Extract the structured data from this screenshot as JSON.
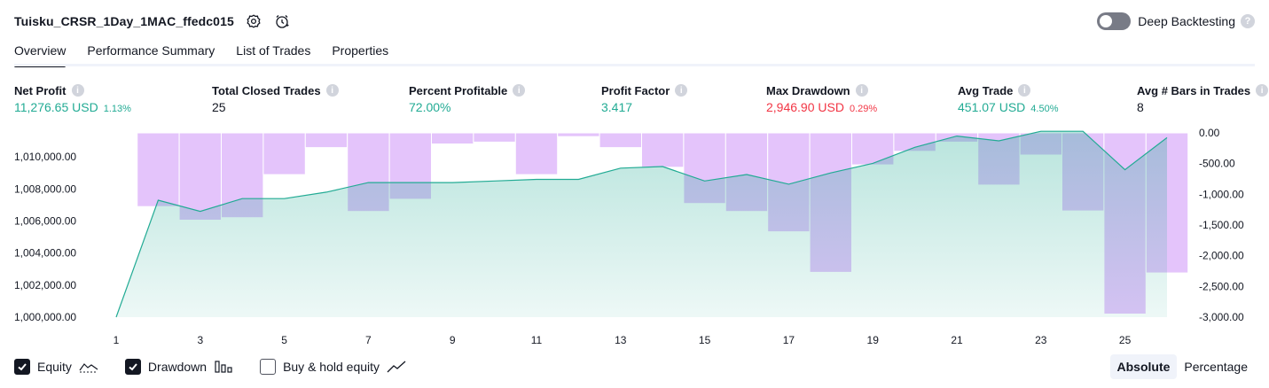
{
  "header": {
    "title": "Tuisku_CRSR_1Day_1MAC_ffedc015",
    "deep_backtesting_label": "Deep Backtesting",
    "deep_backtesting_on": false
  },
  "tabs": [
    {
      "label": "Overview",
      "active": true
    },
    {
      "label": "Performance Summary",
      "active": false
    },
    {
      "label": "List of Trades",
      "active": false
    },
    {
      "label": "Properties",
      "active": false
    }
  ],
  "metrics": [
    {
      "label": "Net Profit",
      "value": "11,276.65 USD",
      "sub": "1.13%",
      "tone": "green"
    },
    {
      "label": "Total Closed Trades",
      "value": "25",
      "sub": "",
      "tone": "plain"
    },
    {
      "label": "Percent Profitable",
      "value": "72.00%",
      "sub": "",
      "tone": "green"
    },
    {
      "label": "Profit Factor",
      "value": "3.417",
      "sub": "",
      "tone": "green"
    },
    {
      "label": "Max Drawdown",
      "value": "2,946.90 USD",
      "sub": "0.29%",
      "tone": "red"
    },
    {
      "label": "Avg Trade",
      "value": "451.07 USD",
      "sub": "4.50%",
      "tone": "green"
    },
    {
      "label": "Avg # Bars in Trades",
      "value": "8",
      "sub": "",
      "tone": "plain"
    }
  ],
  "chart_data": {
    "type": "area",
    "x_ticks": [
      "1",
      "3",
      "5",
      "7",
      "9",
      "11",
      "13",
      "15",
      "17",
      "19",
      "21",
      "23",
      "25"
    ],
    "left_axis": {
      "ticks": [
        "1,000,000.00",
        "1,002,000.00",
        "1,004,000.00",
        "1,006,000.00",
        "1,008,000.00",
        "1,010,000.00"
      ],
      "ylim": [
        1000000,
        1011500
      ]
    },
    "right_axis": {
      "ticks": [
        "0.00",
        "-500.00",
        "-1,000.00",
        "-1,500.00",
        "-2,000.00",
        "-2,500.00",
        "-3,000.00"
      ],
      "ylim": [
        -3000,
        0
      ]
    },
    "series": [
      {
        "name": "Equity",
        "color": "#22ab94",
        "x": [
          1,
          2,
          3,
          4,
          5,
          6,
          7,
          8,
          9,
          10,
          11,
          12,
          13,
          14,
          15,
          16,
          17,
          18,
          19,
          20,
          21,
          22,
          23,
          24,
          25,
          26
        ],
        "values": [
          1000000,
          1007300,
          1006600,
          1007400,
          1007400,
          1007800,
          1008400,
          1008400,
          1008400,
          1008500,
          1008600,
          1008600,
          1009300,
          1009400,
          1008500,
          1008900,
          1008300,
          1009000,
          1009600,
          1010600,
          1011300,
          1011000,
          1011600,
          1011600,
          1009200,
          1011200
        ]
      },
      {
        "name": "Drawdown",
        "color": "#b39ddb",
        "x": [
          1,
          2,
          3,
          4,
          5,
          6,
          7,
          8,
          9,
          10,
          11,
          12,
          13,
          14,
          15,
          16,
          17,
          18,
          19,
          20,
          21,
          22,
          23,
          24,
          25,
          26
        ],
        "values": [
          -5,
          -1200,
          -1420,
          -1380,
          -680,
          -240,
          -1280,
          -1080,
          -180,
          -150,
          -680,
          -60,
          -240,
          -560,
          -1150,
          -1280,
          -1610,
          -2270,
          -520,
          -300,
          -150,
          -850,
          -360,
          -1270,
          -2950,
          -2280
        ]
      }
    ]
  },
  "legend": {
    "items": [
      {
        "label": "Equity",
        "checked": true,
        "glyph": "equity-glyph-icon"
      },
      {
        "label": "Drawdown",
        "checked": true,
        "glyph": "drawdown-bars-icon"
      },
      {
        "label": "Buy & hold equity",
        "checked": false,
        "glyph": "buy-hold-line-icon"
      }
    ]
  },
  "mode": {
    "absolute_label": "Absolute",
    "percentage_label": "Percentage",
    "active": "Absolute"
  }
}
